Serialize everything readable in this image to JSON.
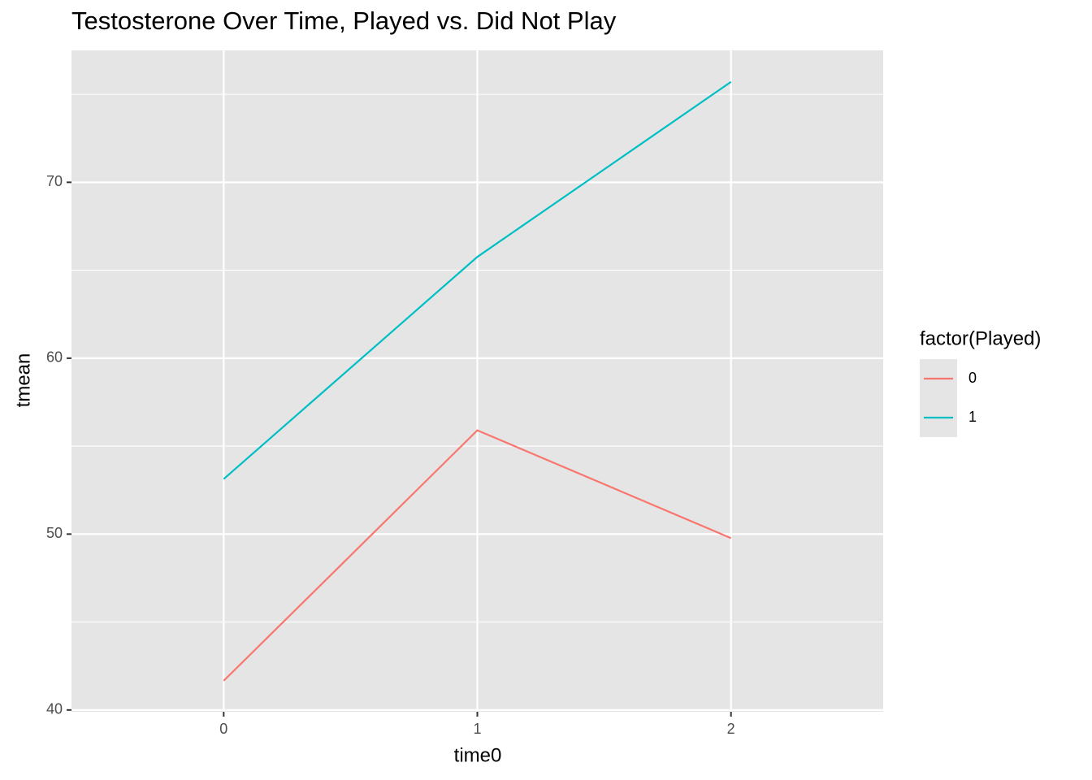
{
  "chart_data": {
    "type": "line",
    "title": "Testosterone Over Time, Played vs. Did Not Play",
    "x_label": "time0",
    "y_label": "tmean",
    "x": [
      0,
      1,
      2
    ],
    "series": [
      {
        "name": "0",
        "color": "#F8766D",
        "values": [
          41.66,
          55.9,
          49.77
        ]
      },
      {
        "name": "1",
        "color": "#00BFC4",
        "values": [
          53.13,
          65.76,
          75.71
        ]
      }
    ],
    "legend_title": "factor(Played)",
    "legend_position": "right",
    "xlim": [
      -0.6,
      2.6
    ],
    "xticks": [
      0,
      1,
      2
    ],
    "ylim": [
      39.9,
      77.5
    ],
    "yticks": [
      40,
      50,
      60,
      70
    ],
    "yminor": [
      45,
      55,
      65,
      75
    ],
    "grid": true
  }
}
